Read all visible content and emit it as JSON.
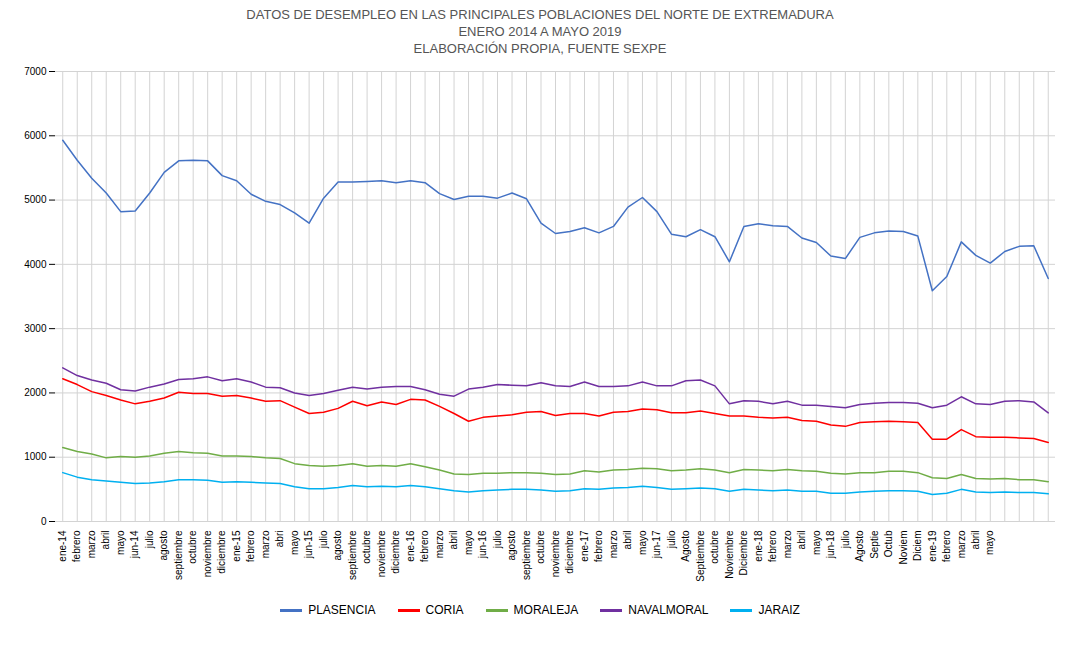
{
  "chart_data": {
    "type": "line",
    "title": "DATOS DE DESEMPLEO EN LAS PRINCIPALES POBLACIONES DEL NORTE DE EXTREMADURA\nENERO 2014 A  MAYO 2019\nELABORACIÓN PROPIA, FUENTE SEXPE",
    "categories": [
      "ene-14",
      "febrero",
      "marzo",
      "abril",
      "mayo",
      "jun-14",
      "julio",
      "agosto",
      "septiembre",
      "octubre",
      "noviembre",
      "diciembre",
      "ene-15",
      "febrero",
      "marzo",
      "abri",
      "mayo",
      "jun-15",
      "julio",
      "agosto",
      "septiembre",
      "octubre",
      "noviembre",
      "diciembre",
      "ene-16",
      "febrero",
      "marzo",
      "abril",
      "mayo",
      "jun-16",
      "julio",
      "agosto",
      "septiembre",
      "octubre",
      "noviembre",
      "diciembre",
      "ene-17",
      "febrero",
      "marzo",
      "abril",
      "mayo",
      "jun-17",
      "julio",
      "Agosto",
      "Septiembre",
      "octubre",
      "Noviembre",
      "Diciembre",
      "ene-18",
      "febrero",
      "marzo",
      "abril",
      "mayo",
      "jun-18",
      "julio",
      "Agosto",
      "Septie",
      "Octub",
      "Noviem",
      "Diciem",
      "ene-19",
      "febrero",
      "marzo",
      "abril",
      "mayo",
      null,
      null,
      null,
      null
    ],
    "series": [
      {
        "name": "PLASENCIA",
        "color": "#4472C4",
        "values": [
          5930,
          5620,
          5340,
          5110,
          4820,
          4830,
          5110,
          5430,
          5610,
          5620,
          5610,
          5380,
          5300,
          5090,
          4980,
          4930,
          4800,
          4640,
          5030,
          5280,
          5280,
          5290,
          5300,
          5270,
          5300,
          5270,
          5100,
          5010,
          5060,
          5060,
          5030,
          5110,
          5020,
          4640,
          4480,
          4510,
          4570,
          4490,
          4590,
          4890,
          5040,
          4820,
          4470,
          4430,
          4540,
          4430,
          4040,
          4590,
          4630,
          4600,
          4590,
          4410,
          4340,
          4130,
          4090,
          4420,
          4490,
          4520,
          4510,
          4440,
          3590,
          3810,
          4350,
          4140,
          4020,
          4200,
          4280,
          4290,
          3780
        ]
      },
      {
        "name": "CORIA",
        "color": "#FF0000",
        "values": [
          2220,
          2130,
          2020,
          1960,
          1890,
          1830,
          1870,
          1920,
          2010,
          1990,
          1990,
          1950,
          1960,
          1920,
          1870,
          1880,
          1780,
          1680,
          1700,
          1760,
          1870,
          1800,
          1860,
          1820,
          1900,
          1890,
          1790,
          1680,
          1560,
          1620,
          1640,
          1660,
          1700,
          1710,
          1650,
          1680,
          1680,
          1640,
          1700,
          1710,
          1750,
          1740,
          1690,
          1690,
          1720,
          1680,
          1640,
          1640,
          1620,
          1610,
          1620,
          1570,
          1560,
          1500,
          1480,
          1540,
          1550,
          1560,
          1550,
          1540,
          1280,
          1280,
          1430,
          1320,
          1310,
          1310,
          1300,
          1290,
          1230
        ]
      },
      {
        "name": "MORALEJA",
        "color": "#70AD47",
        "values": [
          1150,
          1090,
          1050,
          990,
          1010,
          1000,
          1020,
          1060,
          1090,
          1070,
          1060,
          1020,
          1020,
          1010,
          990,
          980,
          900,
          870,
          860,
          870,
          900,
          860,
          870,
          860,
          900,
          850,
          800,
          740,
          730,
          750,
          750,
          760,
          760,
          750,
          730,
          740,
          790,
          770,
          800,
          810,
          830,
          820,
          790,
          800,
          820,
          800,
          760,
          810,
          800,
          790,
          810,
          790,
          780,
          750,
          740,
          760,
          760,
          780,
          780,
          760,
          680,
          670,
          730,
          670,
          660,
          670,
          650,
          650,
          620
        ]
      },
      {
        "name": "NAVALMORAL",
        "color": "#7030A0",
        "values": [
          2390,
          2270,
          2200,
          2150,
          2050,
          2030,
          2090,
          2140,
          2210,
          2220,
          2250,
          2190,
          2220,
          2170,
          2090,
          2080,
          2000,
          1960,
          1990,
          2040,
          2090,
          2060,
          2090,
          2100,
          2100,
          2050,
          1980,
          1950,
          2060,
          2090,
          2130,
          2120,
          2110,
          2160,
          2110,
          2100,
          2170,
          2100,
          2100,
          2110,
          2170,
          2110,
          2110,
          2190,
          2200,
          2110,
          1830,
          1880,
          1870,
          1830,
          1870,
          1810,
          1810,
          1790,
          1770,
          1820,
          1840,
          1850,
          1850,
          1840,
          1770,
          1810,
          1940,
          1830,
          1820,
          1870,
          1880,
          1860,
          1690
        ]
      },
      {
        "name": "JARAIZ",
        "color": "#00B0F0",
        "values": [
          760,
          690,
          650,
          630,
          610,
          590,
          600,
          620,
          650,
          650,
          640,
          610,
          620,
          610,
          600,
          590,
          540,
          510,
          510,
          530,
          560,
          540,
          550,
          540,
          560,
          540,
          510,
          480,
          460,
          480,
          490,
          500,
          500,
          490,
          470,
          480,
          510,
          500,
          520,
          530,
          550,
          530,
          500,
          510,
          520,
          510,
          470,
          500,
          490,
          480,
          490,
          470,
          470,
          440,
          440,
          460,
          470,
          480,
          480,
          470,
          420,
          440,
          500,
          460,
          450,
          460,
          450,
          450,
          430
        ]
      }
    ],
    "ylim": [
      0,
      7000
    ],
    "yticks": [
      0,
      1000,
      2000,
      3000,
      4000,
      5000,
      6000,
      7000
    ],
    "grid": true,
    "legend": "bottom"
  }
}
